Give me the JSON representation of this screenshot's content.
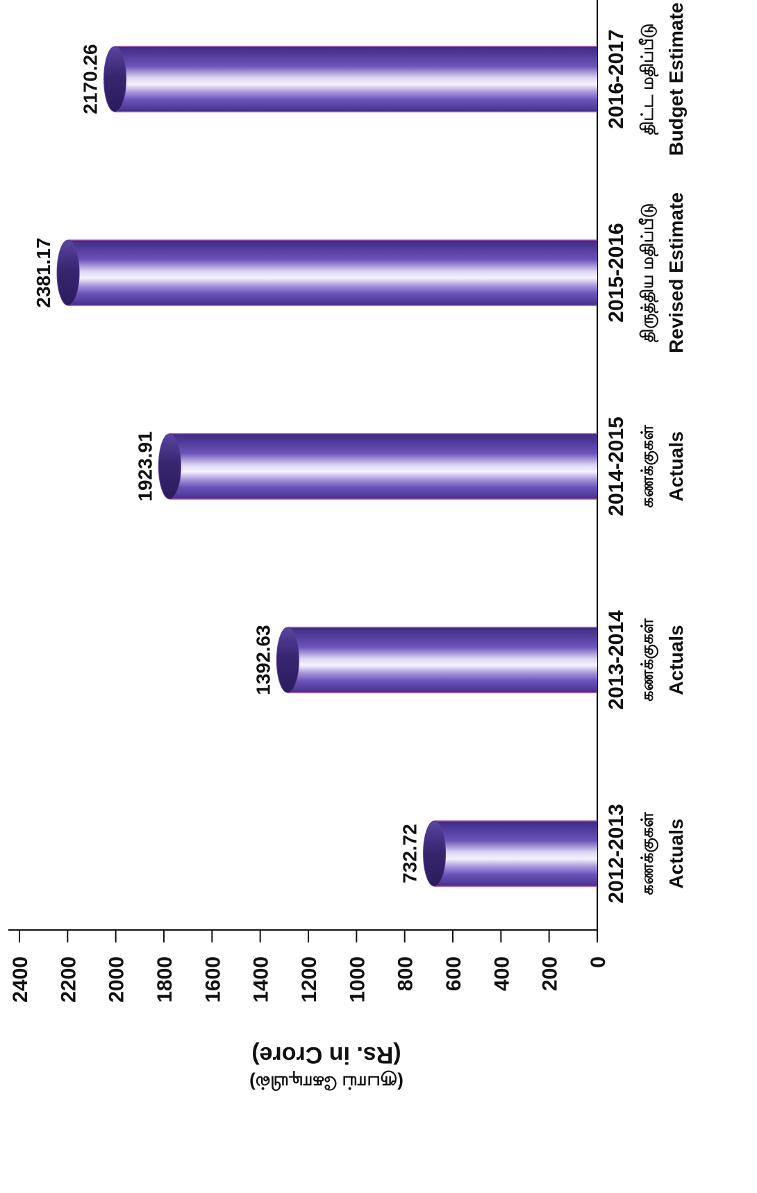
{
  "chart_data": {
    "type": "bar",
    "categories": [
      "2012-2013",
      "2013-2014",
      "2014-2015",
      "2015-2016",
      "2016-2017"
    ],
    "category_labels_ta": [
      "கணக்குகள்",
      "கணக்குகள்",
      "கணக்குகள்",
      "திருத்திய மதிப்பீடு",
      "திட்ட மதிப்பீடு"
    ],
    "category_labels_en": [
      "Actuals",
      "Actuals",
      "Actuals",
      "Revised Estimate",
      "Budget Estimate"
    ],
    "values": [
      732.72,
      1392.63,
      1923.91,
      2381.17,
      2170.26
    ],
    "ylabel": "(Rs. in Crore)",
    "ylabel_ta": "(ரூபாய் கோடியில்)",
    "ylim": [
      0,
      2400
    ],
    "yticks": [
      0,
      200,
      400,
      600,
      800,
      1000,
      1200,
      1400,
      1600,
      1800,
      2000,
      2200,
      2400
    ],
    "grid": false,
    "colors": {
      "bar": "#6c53b9",
      "bar_highlight": "#f5f3fc",
      "bar_cap": "#37266f",
      "bar_edge": "#9d47a6",
      "text": "#111111"
    }
  }
}
